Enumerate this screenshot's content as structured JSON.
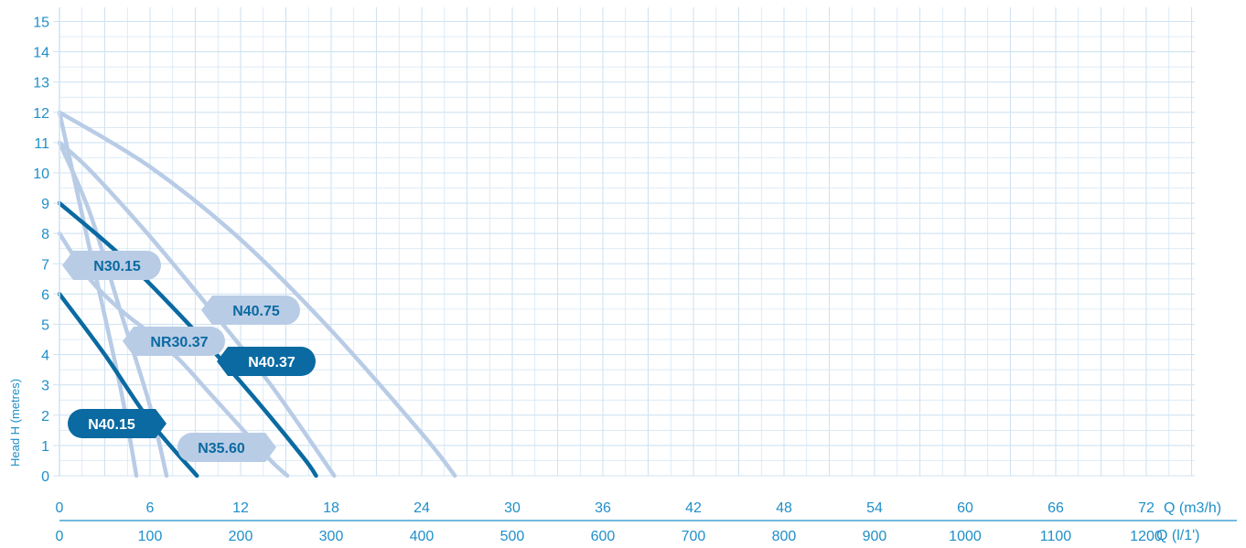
{
  "chart_data": {
    "type": "line",
    "title": "",
    "ylabel": "Head H (metres)",
    "xlabel_top": "Q (m3/h)",
    "xlabel_bottom": "Q (l/1')",
    "ylim": [
      0,
      15
    ],
    "xlim": [
      0,
      75
    ],
    "grid": true,
    "y_ticks": [
      0,
      1,
      2,
      3,
      4,
      5,
      6,
      7,
      8,
      9,
      10,
      11,
      12,
      13,
      14,
      15
    ],
    "x_ticks_m3h": [
      0,
      6,
      12,
      18,
      24,
      30,
      36,
      42,
      48,
      54,
      60,
      66,
      72
    ],
    "x_ticks_lmin": [
      0,
      100,
      200,
      300,
      400,
      500,
      600,
      700,
      800,
      900,
      1000,
      1100,
      1200
    ],
    "series": [
      {
        "name": "N30.15",
        "style": "light",
        "x": [
          0,
          2,
          4,
          5.1
        ],
        "y": [
          12,
          7.5,
          3,
          0
        ]
      },
      {
        "name": "NR30.37",
        "style": "light",
        "x": [
          0,
          2,
          4,
          6,
          7.1
        ],
        "y": [
          11,
          8.7,
          5.5,
          2.3,
          0
        ]
      },
      {
        "name": "N40.15",
        "style": "dark",
        "x": [
          0,
          3,
          6,
          9.1
        ],
        "y": [
          6,
          4,
          1.8,
          0
        ]
      },
      {
        "name": "N35.60",
        "style": "light",
        "x": [
          0,
          2,
          4,
          6,
          8,
          10,
          12,
          14,
          15.1
        ],
        "y": [
          8,
          6.5,
          5.5,
          4.7,
          3.8,
          2.7,
          1.6,
          0.5,
          0
        ]
      },
      {
        "name": "N40.37",
        "style": "dark",
        "x": [
          0,
          4,
          8,
          12,
          16,
          17
        ],
        "y": [
          9,
          7.3,
          5.3,
          3.1,
          0.7,
          0
        ]
      },
      {
        "name": "N40.75",
        "style": "light",
        "x": [
          0,
          2,
          6,
          10,
          14,
          18.2
        ],
        "y": [
          11,
          10.1,
          7.9,
          5.5,
          3,
          0
        ]
      },
      {
        "name": "",
        "style": "light",
        "x": [
          0,
          6,
          12,
          18,
          24,
          26.2
        ],
        "y": [
          12,
          10.2,
          7.8,
          4.8,
          1.4,
          0
        ]
      }
    ]
  },
  "labels": [
    {
      "text": "N30.15",
      "style": "light"
    },
    {
      "text": "N40.75",
      "style": "light"
    },
    {
      "text": "NR30.37",
      "style": "light"
    },
    {
      "text": "N40.37",
      "style": "dark"
    },
    {
      "text": "N40.15",
      "style": "dark"
    },
    {
      "text": "N35.60",
      "style": "light"
    }
  ],
  "colors": {
    "dark": "#0a6aa1",
    "light": "#b9cce6",
    "grid": "#cfe3f3",
    "text": "#1f8fc9",
    "axis": "#1f8fc9"
  }
}
